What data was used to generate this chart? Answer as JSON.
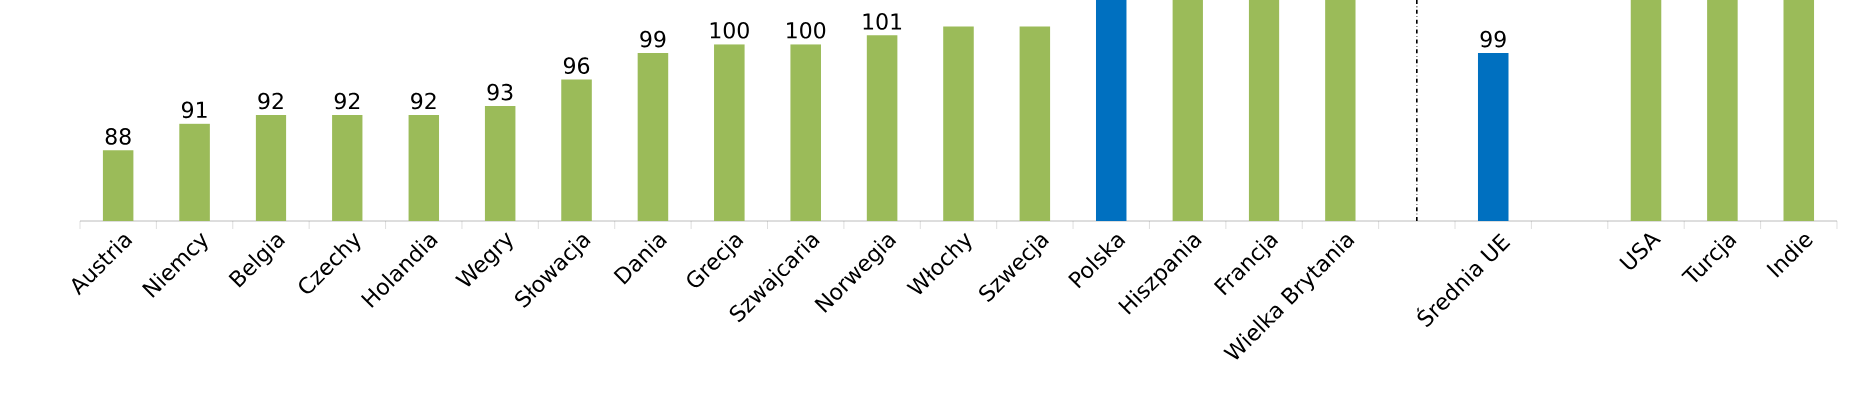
{
  "chart_data": {
    "type": "bar",
    "categories": [
      "Austria",
      "Niemcy",
      "Belgia",
      "Czechy",
      "Holandia",
      "Wegry",
      "Słowacja",
      "Dania",
      "Grecja",
      "Szwajcaria",
      "Norwegia",
      "Włochy",
      "Szwecja",
      "Polska",
      "Hiszpania",
      "Francja",
      "Wielka Brytania",
      null,
      "Średnia UE",
      null,
      "USA",
      "Turcja",
      "Indie"
    ],
    "values": [
      88,
      91,
      92,
      92,
      92,
      93,
      96,
      99,
      100,
      100,
      101,
      102,
      102,
      105,
      105,
      105,
      105,
      null,
      99,
      null,
      105,
      105,
      105
    ],
    "value_labels": [
      "88",
      "91",
      "92",
      "92",
      "92",
      "93",
      "96",
      "99",
      "100",
      "100",
      "101",
      null,
      null,
      null,
      null,
      null,
      null,
      null,
      "99",
      null,
      null,
      null,
      null
    ],
    "colors": [
      "#9bbb59",
      "#9bbb59",
      "#9bbb59",
      "#9bbb59",
      "#9bbb59",
      "#9bbb59",
      "#9bbb59",
      "#9bbb59",
      "#9bbb59",
      "#9bbb59",
      "#9bbb59",
      "#9bbb59",
      "#9bbb59",
      "#0070c0",
      "#9bbb59",
      "#9bbb59",
      "#9bbb59",
      null,
      "#0070c0",
      null,
      "#9bbb59",
      "#9bbb59",
      "#9bbb59"
    ],
    "ylim": [
      80,
      105
    ]
  }
}
